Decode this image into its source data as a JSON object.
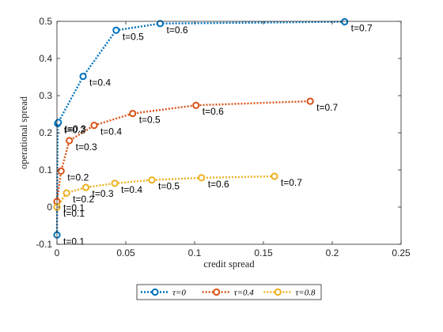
{
  "chart_data": {
    "type": "line",
    "xlabel": "credit spread",
    "ylabel": "operational spread",
    "xlim": [
      0,
      0.25
    ],
    "ylim": [
      -0.1,
      0.5
    ],
    "xticks": [
      "0",
      "0.05",
      "0.1",
      "0.15",
      "0.2",
      "0.25"
    ],
    "yticks": [
      "-0.1",
      "0",
      "0.1",
      "0.2",
      "0.3",
      "0.4",
      "0.5"
    ],
    "grid": false,
    "legend_position": "bottom-outside",
    "series": [
      {
        "name": "τ=0",
        "color": "#0072BD",
        "points": [
          {
            "x": 0.0,
            "y": -0.075,
            "label": "t=0.1"
          },
          {
            "x": 0.0005,
            "y": 0.225,
            "label": "t=0.2"
          },
          {
            "x": 0.001,
            "y": 0.228,
            "label": "t=0.3"
          },
          {
            "x": 0.019,
            "y": 0.352,
            "label": "t=0.4"
          },
          {
            "x": 0.043,
            "y": 0.476,
            "label": "t=0.5"
          },
          {
            "x": 0.075,
            "y": 0.494,
            "label": "t=0.6"
          },
          {
            "x": 0.209,
            "y": 0.499,
            "label": "t=0.7"
          }
        ]
      },
      {
        "name": "τ=0.4",
        "color": "#D95319",
        "points": [
          {
            "x": 0.0,
            "y": 0.015,
            "label": "t=0.1"
          },
          {
            "x": 0.003,
            "y": 0.097,
            "label": "t=0.2"
          },
          {
            "x": 0.009,
            "y": 0.179,
            "label": "t=0.3"
          },
          {
            "x": 0.027,
            "y": 0.22,
            "label": "t=0.4"
          },
          {
            "x": 0.055,
            "y": 0.252,
            "label": "t=0.5"
          },
          {
            "x": 0.101,
            "y": 0.274,
            "label": "t=0.6"
          },
          {
            "x": 0.184,
            "y": 0.285,
            "label": "t=0.7"
          }
        ]
      },
      {
        "name": "τ=0.8",
        "color": "#EDB120",
        "points": [
          {
            "x": 0.0,
            "y": 0.0,
            "label": "t=0.1"
          },
          {
            "x": 0.007,
            "y": 0.038,
            "label": "t=0.2"
          },
          {
            "x": 0.021,
            "y": 0.053,
            "label": "t=0.3"
          },
          {
            "x": 0.042,
            "y": 0.064,
            "label": "t=0.4"
          },
          {
            "x": 0.069,
            "y": 0.073,
            "label": "t=0.5"
          },
          {
            "x": 0.105,
            "y": 0.079,
            "label": "t=0.6"
          },
          {
            "x": 0.158,
            "y": 0.083,
            "label": "t=0.7"
          }
        ]
      }
    ]
  }
}
